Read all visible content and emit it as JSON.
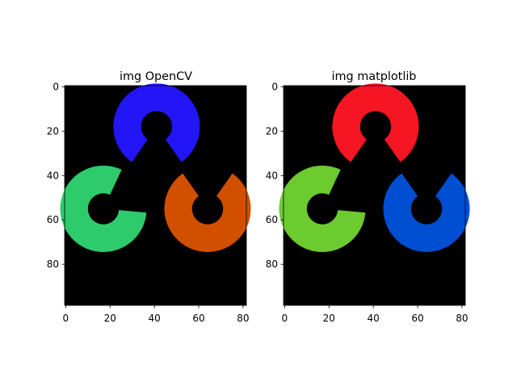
{
  "chart_data": [
    {
      "type": "image",
      "title": "img OpenCV",
      "xlabel": "",
      "ylabel": "",
      "xlim": [
        -0.5,
        81.5
      ],
      "ylim": [
        98.5,
        -0.5
      ],
      "x_ticks": [
        0,
        20,
        40,
        60,
        80
      ],
      "y_ticks": [
        0,
        20,
        40,
        60,
        80
      ],
      "background_color": "#000000",
      "rings": [
        {
          "position": "top",
          "cx": 41,
          "cy": 18,
          "r_outer": 19.5,
          "r_inner": 7,
          "gap_direction_deg": 90,
          "gap_width_deg": 70,
          "color": "#2316f6"
        },
        {
          "position": "bottom-left",
          "cx": 17,
          "cy": 55,
          "r_outer": 19.5,
          "r_inner": 7,
          "gap_direction_deg": -30,
          "gap_width_deg": 70,
          "color": "#2ecb6c"
        },
        {
          "position": "bottom-right",
          "cx": 64,
          "cy": 55,
          "r_outer": 19.5,
          "r_inner": 7,
          "gap_direction_deg": -90,
          "gap_width_deg": 70,
          "color": "#d24f00"
        }
      ]
    },
    {
      "type": "image",
      "title": "img matplotlib",
      "xlabel": "",
      "ylabel": "",
      "xlim": [
        -0.5,
        81.5
      ],
      "ylim": [
        98.5,
        -0.5
      ],
      "x_ticks": [
        0,
        20,
        40,
        60,
        80
      ],
      "y_ticks": [
        0,
        20,
        40,
        60,
        80
      ],
      "background_color": "#000000",
      "rings": [
        {
          "position": "top",
          "cx": 41,
          "cy": 18,
          "r_outer": 19.5,
          "r_inner": 7,
          "gap_direction_deg": 90,
          "gap_width_deg": 70,
          "color": "#f61623"
        },
        {
          "position": "bottom-left",
          "cx": 17,
          "cy": 55,
          "r_outer": 19.5,
          "r_inner": 7,
          "gap_direction_deg": -30,
          "gap_width_deg": 70,
          "color": "#6ccb2e"
        },
        {
          "position": "bottom-right",
          "cx": 64,
          "cy": 55,
          "r_outer": 19.5,
          "r_inner": 7,
          "gap_direction_deg": -90,
          "gap_width_deg": 70,
          "color": "#004fd2"
        }
      ]
    }
  ]
}
